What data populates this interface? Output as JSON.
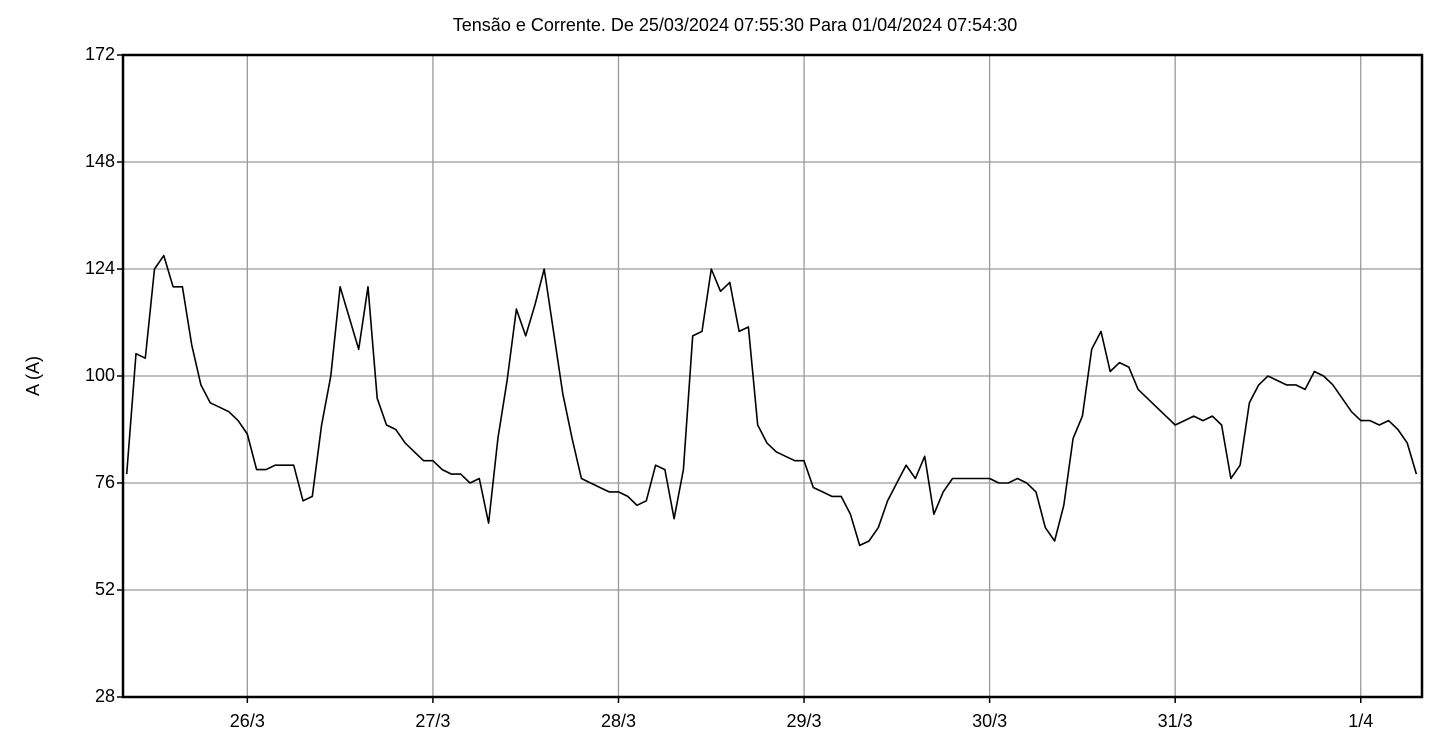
{
  "chart_data": {
    "type": "line",
    "title": "Tensão e Corrente. De 25/03/2024 07:55:30 Para 01/04/2024 07:54:30",
    "ylabel": "A (A)",
    "xlim": [
      25.33,
      32.33
    ],
    "xticks": [
      {
        "value": 26,
        "label": "26/3"
      },
      {
        "value": 27,
        "label": "27/3"
      },
      {
        "value": 28,
        "label": "28/3"
      },
      {
        "value": 29,
        "label": "29/3"
      },
      {
        "value": 30,
        "label": "30/3"
      },
      {
        "value": 31,
        "label": "31/3"
      },
      {
        "value": 32,
        "label": "1/4"
      }
    ],
    "ylim": [
      28,
      172
    ],
    "yticks": [
      28,
      52,
      76,
      100,
      124,
      148,
      172
    ],
    "grid": true,
    "x": [
      25.35,
      25.4,
      25.45,
      25.5,
      25.55,
      25.6,
      25.65,
      25.7,
      25.75,
      25.8,
      25.85,
      25.9,
      25.95,
      26.0,
      26.05,
      26.1,
      26.15,
      26.2,
      26.25,
      26.3,
      26.35,
      26.4,
      26.45,
      26.5,
      26.55,
      26.6,
      26.65,
      26.7,
      26.75,
      26.8,
      26.85,
      26.9,
      26.95,
      27.0,
      27.05,
      27.1,
      27.15,
      27.2,
      27.25,
      27.3,
      27.35,
      27.4,
      27.45,
      27.5,
      27.55,
      27.6,
      27.65,
      27.7,
      27.75,
      27.8,
      27.85,
      27.9,
      27.95,
      28.0,
      28.05,
      28.1,
      28.15,
      28.2,
      28.25,
      28.3,
      28.35,
      28.4,
      28.45,
      28.5,
      28.55,
      28.6,
      28.65,
      28.7,
      28.75,
      28.8,
      28.85,
      28.9,
      28.95,
      29.0,
      29.05,
      29.1,
      29.15,
      29.2,
      29.25,
      29.3,
      29.35,
      29.4,
      29.45,
      29.5,
      29.55,
      29.6,
      29.65,
      29.7,
      29.75,
      29.8,
      29.85,
      29.9,
      29.95,
      30.0,
      30.05,
      30.1,
      30.15,
      30.2,
      30.25,
      30.3,
      30.35,
      30.4,
      30.45,
      30.5,
      30.55,
      30.6,
      30.65,
      30.7,
      30.75,
      30.8,
      30.85,
      30.9,
      30.95,
      31.0,
      31.05,
      31.1,
      31.15,
      31.2,
      31.25,
      31.3,
      31.35,
      31.4,
      31.45,
      31.5,
      31.55,
      31.6,
      31.65,
      31.7,
      31.75,
      31.8,
      31.85,
      31.9,
      31.95,
      32.0,
      32.05,
      32.1,
      32.15,
      32.2,
      32.25,
      32.3
    ],
    "series": [
      {
        "color": "#000000",
        "values": [
          78,
          105,
          104,
          124,
          127,
          120,
          120,
          107,
          98,
          94,
          93,
          92,
          90,
          87,
          79,
          79,
          80,
          80,
          80,
          72,
          73,
          89,
          100,
          120,
          113,
          106,
          120,
          95,
          89,
          88,
          85,
          83,
          81,
          81,
          79,
          78,
          78,
          76,
          77,
          67,
          86,
          99,
          115,
          109,
          116,
          124,
          110,
          96,
          86,
          77,
          76,
          75,
          74,
          74,
          73,
          71,
          72,
          80,
          79,
          68,
          79,
          109,
          110,
          124,
          119,
          121,
          110,
          111,
          89,
          85,
          83,
          82,
          81,
          81,
          75,
          74,
          73,
          73,
          69,
          62,
          63,
          66,
          72,
          76,
          80,
          77,
          82,
          69,
          74,
          77,
          77,
          77,
          77,
          77,
          76,
          76,
          77,
          76,
          74,
          66,
          63,
          71,
          86,
          91,
          106,
          110,
          101,
          103,
          102,
          97,
          95,
          93,
          91,
          89,
          90,
          91,
          90,
          91,
          89,
          77,
          80,
          94,
          98,
          100,
          99,
          98,
          98,
          97,
          101,
          100,
          98,
          95,
          92,
          90,
          90,
          89,
          90,
          88,
          85,
          78
        ]
      }
    ]
  }
}
